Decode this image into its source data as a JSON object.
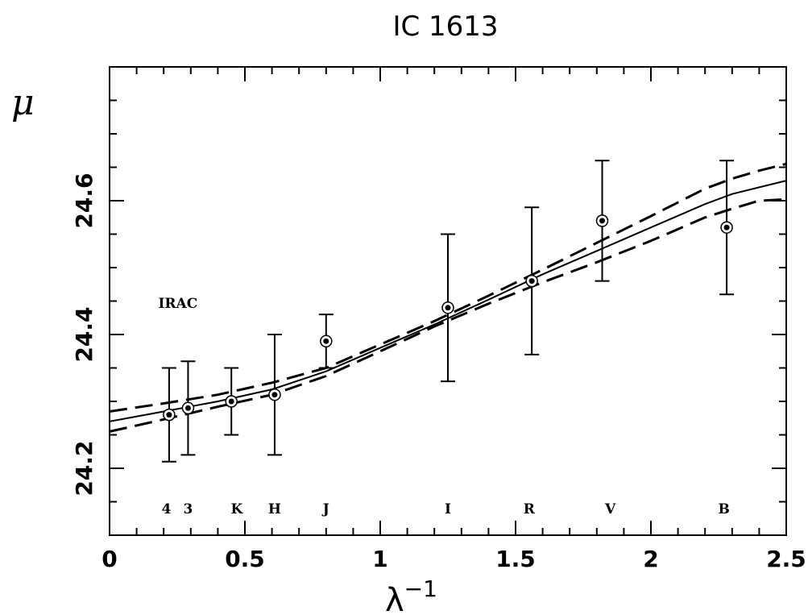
{
  "chart_data": {
    "type": "scatter",
    "title": "IC 1613",
    "xlabel": "λ",
    "xlabel_exponent": "−1",
    "ylabel": "μ",
    "xlim": [
      0,
      2.5
    ],
    "ylim": [
      24.1,
      24.8
    ],
    "x_ticks": [
      0,
      0.5,
      1,
      1.5,
      2,
      2.5
    ],
    "x_tick_labels": [
      "0",
      "0.5",
      "1",
      "1.5",
      "2",
      "2.5"
    ],
    "y_ticks": [
      24.2,
      24.4,
      24.6
    ],
    "y_tick_labels": [
      "24.2",
      "24.4",
      "24.6"
    ],
    "grid": false,
    "annotation": "IRAC",
    "points": [
      {
        "band": "4",
        "x": 0.22,
        "y": 24.28,
        "err": 0.07
      },
      {
        "band": "3",
        "x": 0.29,
        "y": 24.29,
        "err": 0.07
      },
      {
        "band": "K",
        "x": 0.45,
        "y": 24.3,
        "err": 0.05
      },
      {
        "band": "H",
        "x": 0.61,
        "y": 24.31,
        "err": 0.09
      },
      {
        "band": "J",
        "x": 0.8,
        "y": 24.39,
        "err": 0.04
      },
      {
        "band": "I",
        "x": 1.25,
        "y": 24.44,
        "err": 0.11
      },
      {
        "band": "R",
        "x": 1.56,
        "y": 24.48,
        "err": 0.11
      },
      {
        "band": "V",
        "x": 1.82,
        "y": 24.57,
        "err": 0.09
      },
      {
        "band": "B",
        "x": 2.28,
        "y": 24.56,
        "err": 0.1
      }
    ],
    "band_labels": [
      {
        "text": "4",
        "x": 0.21
      },
      {
        "text": "3",
        "x": 0.29
      },
      {
        "text": "K",
        "x": 0.47
      },
      {
        "text": "H",
        "x": 0.61
      },
      {
        "text": "J",
        "x": 0.8
      },
      {
        "text": "I",
        "x": 1.25
      },
      {
        "text": "R",
        "x": 1.55
      },
      {
        "text": "V",
        "x": 1.85
      },
      {
        "text": "B",
        "x": 2.27
      }
    ],
    "band_label_y": 24.14,
    "annotation_pos": {
      "x": 0.18,
      "y": 24.44
    },
    "series": [
      {
        "style": "solid",
        "x": [
          0,
          0.2,
          0.4,
          0.6,
          0.8,
          1.0,
          1.2,
          1.4,
          1.6,
          1.8,
          2.0,
          2.2,
          2.3,
          2.4,
          2.5
        ],
        "y": [
          24.27,
          24.285,
          24.3,
          24.318,
          24.345,
          24.38,
          24.415,
          24.452,
          24.49,
          24.525,
          24.56,
          24.595,
          24.61,
          24.62,
          24.63
        ]
      },
      {
        "style": "dashed",
        "x": [
          0,
          0.2,
          0.4,
          0.6,
          0.8,
          1.0,
          1.2,
          1.4,
          1.6,
          1.8,
          2.0,
          2.2,
          2.3,
          2.4,
          2.5
        ],
        "y": [
          24.285,
          24.297,
          24.31,
          24.328,
          24.35,
          24.385,
          24.42,
          24.458,
          24.497,
          24.537,
          24.577,
          24.618,
          24.633,
          24.645,
          24.655
        ]
      },
      {
        "style": "dashed",
        "x": [
          0,
          0.2,
          0.4,
          0.6,
          0.8,
          1.0,
          1.2,
          1.4,
          1.6,
          1.8,
          2.0,
          2.2,
          2.3,
          2.4,
          2.5
        ],
        "y": [
          24.255,
          24.273,
          24.292,
          24.31,
          24.338,
          24.375,
          24.412,
          24.446,
          24.478,
          24.508,
          24.54,
          24.575,
          24.588,
          24.6,
          24.602
        ]
      }
    ]
  }
}
